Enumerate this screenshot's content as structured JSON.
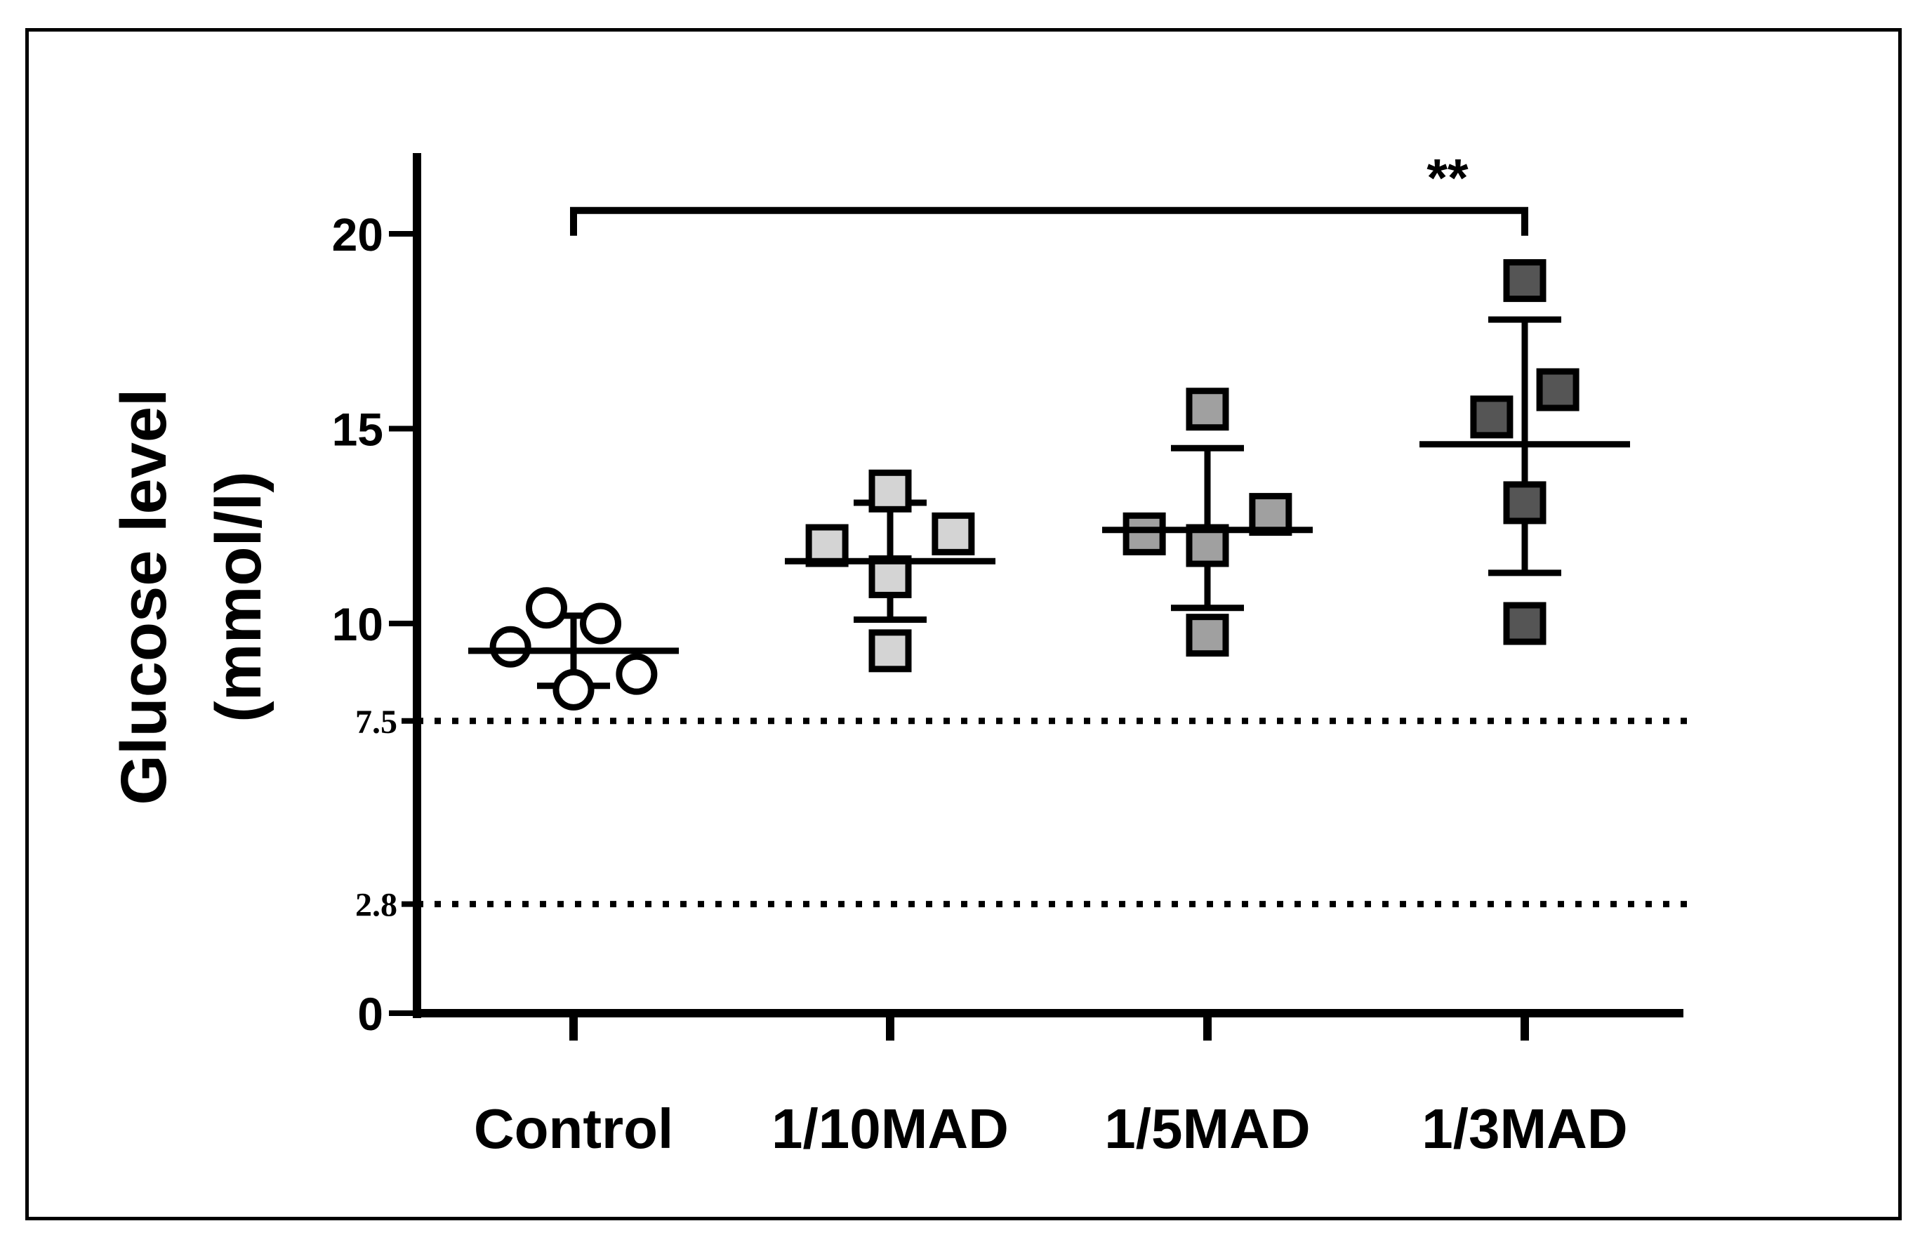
{
  "chart_data": {
    "type": "scatter",
    "ylabel_line1": "Glucose level",
    "ylabel_line2": "(mmol/l)",
    "ylim": [
      0,
      22
    ],
    "categories": [
      "Control",
      "1/10MAD",
      "1/5MAD",
      "1/3MAD"
    ],
    "major_ticks": [
      "0",
      "10",
      "15",
      "20"
    ],
    "minor_ticks": [
      "2.8",
      "7.5"
    ],
    "reference_lines": [
      7.5,
      2.8
    ],
    "series": [
      {
        "name": "Control",
        "marker": "circle",
        "fill": "#ffffff",
        "x_offsets": [
          -0.09,
          -0.21,
          0.09,
          0.21,
          0.0
        ],
        "values": [
          10.4,
          9.4,
          10.0,
          8.7,
          8.3
        ],
        "mean": 9.3,
        "sd_upper": 10.2,
        "sd_lower": 8.4
      },
      {
        "name": "1/10MAD",
        "marker": "square",
        "fill": "#d4d4d4",
        "x_offsets": [
          -0.21,
          0.0,
          0.0,
          0.21,
          0.0
        ],
        "values": [
          12.0,
          13.4,
          11.2,
          12.3,
          9.3
        ],
        "mean": 11.6,
        "sd_upper": 13.1,
        "sd_lower": 10.1
      },
      {
        "name": "1/5MAD",
        "marker": "square",
        "fill": "#a0a0a0",
        "x_offsets": [
          -0.21,
          0.0,
          0.0,
          0.21,
          0.0
        ],
        "values": [
          12.3,
          15.5,
          12.0,
          12.8,
          9.7
        ],
        "mean": 12.4,
        "sd_upper": 14.5,
        "sd_lower": 10.4
      },
      {
        "name": "1/3MAD",
        "marker": "square",
        "fill": "#555555",
        "x_offsets": [
          -0.11,
          0.0,
          0.11,
          0.0,
          0.0
        ],
        "values": [
          15.3,
          18.8,
          16.0,
          13.1,
          10.0
        ],
        "mean": 14.6,
        "sd_upper": 17.8,
        "sd_lower": 11.3
      }
    ],
    "significance": {
      "from": "Control",
      "to": "1/3MAD",
      "label": "**",
      "level": 20.6
    }
  }
}
